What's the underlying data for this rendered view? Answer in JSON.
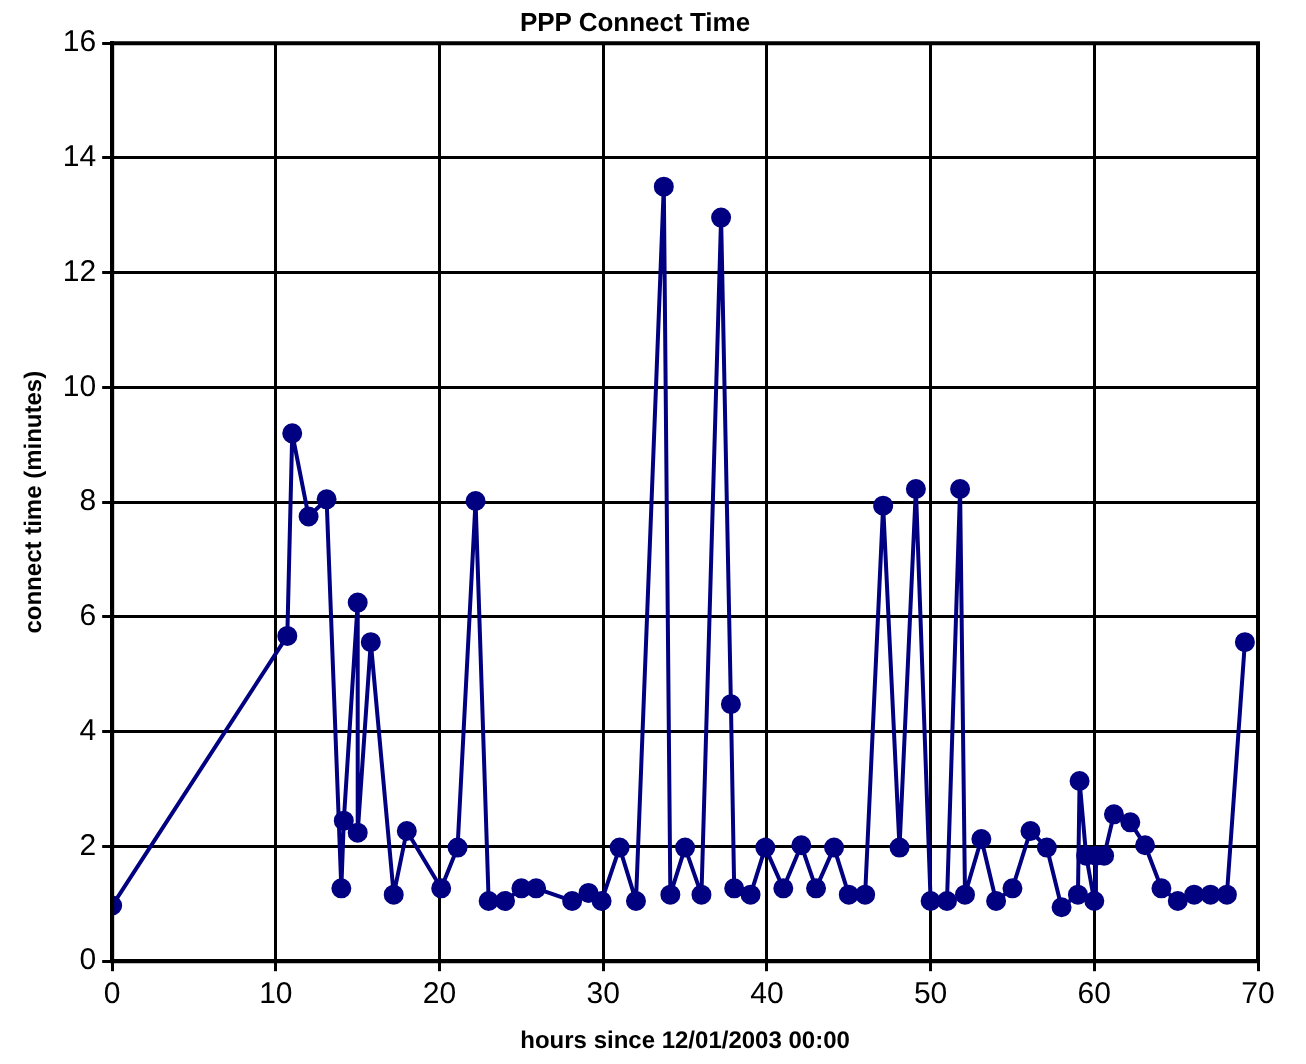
{
  "chart_data": {
    "type": "line",
    "title": "PPP Connect Time",
    "xlabel": "hours since 12/01/2003 00:00",
    "ylabel": "connect time (minutes)",
    "xlim": [
      0,
      70
    ],
    "xticks": [
      0,
      10,
      20,
      30,
      40,
      50,
      60,
      70
    ],
    "ylim": [
      0,
      16
    ],
    "yticks": [
      0,
      2,
      4,
      6,
      8,
      10,
      12,
      14,
      16
    ],
    "grid": true,
    "legend": false,
    "marker": "circle",
    "line_style": "solid",
    "series": [
      {
        "color": "#000080",
        "x": [
          0,
          10.7,
          11.0,
          12.0,
          13.1,
          14.0,
          14.15,
          15.0,
          15.0,
          15.8,
          17.2,
          18.0,
          20.1,
          21.1,
          22.2,
          23.0,
          24.0,
          25.0,
          25.9,
          28.1,
          29.1,
          29.9,
          31.0,
          32.0,
          33.7,
          34.1,
          35.0,
          36.0,
          37.2,
          37.8,
          38.0,
          39.0,
          39.9,
          41.0,
          42.1,
          43.0,
          44.1,
          45.0,
          46.0,
          47.1,
          48.1,
          49.1,
          50.0,
          51.0,
          51.8,
          52.1,
          53.1,
          54.0,
          55.0,
          56.1,
          57.1,
          58.0,
          59.0,
          59.1,
          59.5,
          60.0,
          60.1,
          60.6,
          61.2,
          62.2,
          63.1,
          64.1,
          65.1,
          66.1,
          67.1,
          68.1,
          69.2
        ],
        "values": [
          0.97,
          5.67,
          9.2,
          7.75,
          8.05,
          1.27,
          2.45,
          6.25,
          2.24,
          5.56,
          1.16,
          2.27,
          1.27,
          1.98,
          8.02,
          1.05,
          1.05,
          1.27,
          1.27,
          1.05,
          1.19,
          1.05,
          1.98,
          1.05,
          13.5,
          1.16,
          1.98,
          1.16,
          12.96,
          4.48,
          1.27,
          1.16,
          1.98,
          1.27,
          2.02,
          1.27,
          1.98,
          1.16,
          1.16,
          7.94,
          1.98,
          8.23,
          1.05,
          1.05,
          8.23,
          1.16,
          2.13,
          1.05,
          1.27,
          2.27,
          1.98,
          0.94,
          1.16,
          3.14,
          1.84,
          1.05,
          1.84,
          1.84,
          2.56,
          2.42,
          2.02,
          1.27,
          1.05,
          1.16,
          1.16,
          1.16,
          5.56
        ]
      }
    ]
  }
}
